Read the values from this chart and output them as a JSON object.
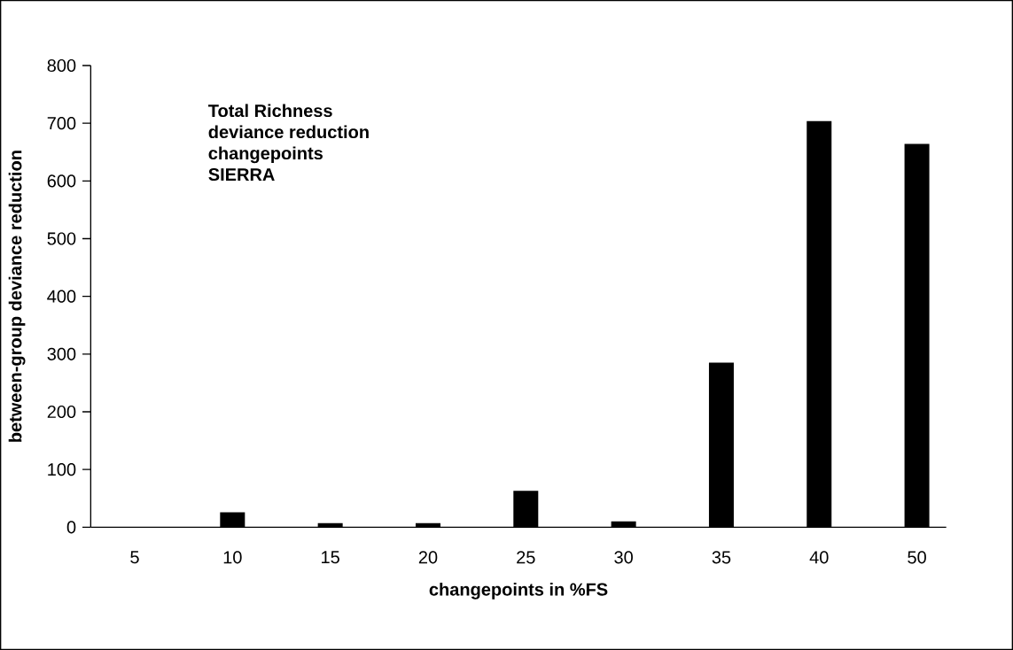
{
  "chart_data": {
    "type": "bar",
    "xlabel": "changepoints in %FS",
    "ylabel": "between-group deviance reduction",
    "annotations": [
      "Total Richness",
      "deviance reduction",
      "changepoints",
      "SIERRA"
    ],
    "categories": [
      "5",
      "10",
      "15",
      "20",
      "25",
      "30",
      "35",
      "40",
      "50"
    ],
    "values": [
      0,
      26,
      7,
      7,
      63,
      10,
      285,
      704,
      664
    ],
    "color": "#000000",
    "ylim": [
      0,
      800
    ],
    "yticks": [
      0,
      100,
      200,
      300,
      400,
      500,
      600,
      700,
      800
    ]
  }
}
